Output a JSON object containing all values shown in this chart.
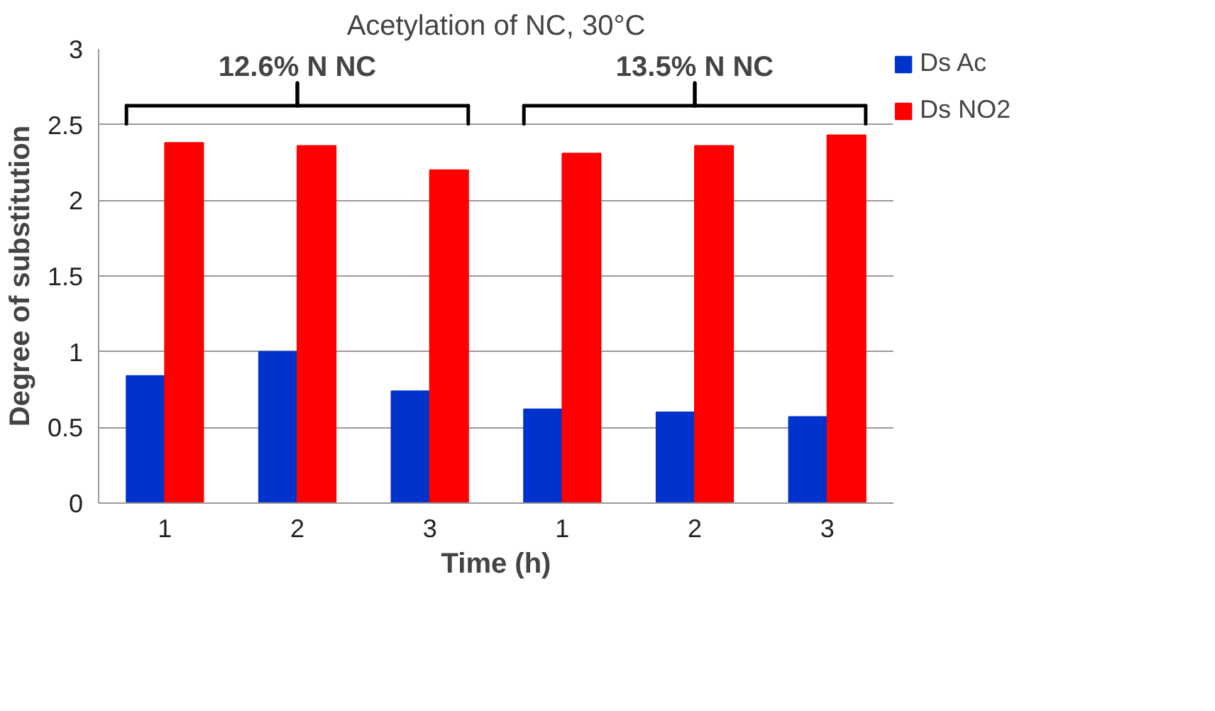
{
  "chart_data": {
    "type": "bar",
    "title": "Acetylation of NC, 30°C",
    "xlabel": "Time (h)",
    "ylabel": "Degree of substitution",
    "categories": [
      "1",
      "2",
      "3",
      "1",
      "2",
      "3"
    ],
    "series": [
      {
        "name": "Ds Ac",
        "color": "#0033cc",
        "values": [
          0.84,
          1.0,
          0.74,
          0.62,
          0.6,
          0.57
        ]
      },
      {
        "name": "Ds NO2",
        "color": "#ff0000",
        "values": [
          2.38,
          2.36,
          2.2,
          2.31,
          2.36,
          2.43
        ]
      }
    ],
    "annotations": [
      "12.6% N NC",
      "13.5% N NC"
    ],
    "ylim": [
      0,
      3
    ],
    "yticks": [
      0,
      0.5,
      1,
      1.5,
      2,
      2.5,
      3
    ],
    "grid": "y",
    "legend": "right"
  }
}
